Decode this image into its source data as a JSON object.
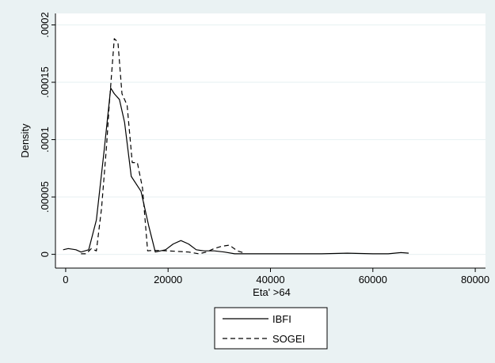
{
  "colors": {
    "background": "#eaf2f3",
    "plot_background": "#ffffff",
    "gridline": "#eaf2f3",
    "series": "#000000"
  },
  "chart_data": {
    "type": "line",
    "xlabel": "Eta' >64",
    "ylabel": "Density",
    "xlim": [
      -2000,
      82000
    ],
    "ylim": [
      -1.2e-05,
      0.00021
    ],
    "x_ticks": [
      0,
      20000,
      40000,
      60000,
      80000
    ],
    "x_tick_labels": [
      "0",
      "20000",
      "40000",
      "60000",
      "80000"
    ],
    "y_ticks": [
      0,
      5e-05,
      0.0001,
      0.00015,
      0.0002
    ],
    "y_tick_labels": [
      "0",
      ".00005",
      ".0001",
      ".00015",
      ".0002"
    ],
    "grid": "horizontal",
    "legend_position": "bottom",
    "series": [
      {
        "name": "IBFI",
        "dash": "solid",
        "x": [
          -500,
          500,
          2000,
          3000,
          4500,
          6000,
          7500,
          8800,
          9500,
          10500,
          11500,
          12800,
          14700,
          16200,
          17500,
          19500,
          21000,
          22500,
          24000,
          25500,
          27000,
          29000,
          31000,
          33000,
          36000,
          40000,
          45000,
          50000,
          55000,
          60000,
          63000,
          65500,
          67000
        ],
        "y": [
          4e-06,
          5e-06,
          4e-06,
          2e-06,
          4e-06,
          3e-05,
          9e-05,
          0.000145,
          0.00014,
          0.000135,
          0.000115,
          6.8e-05,
          5.5e-05,
          2.5e-05,
          2e-06,
          4e-06,
          9e-06,
          1.2e-05,
          9e-06,
          4e-06,
          3e-06,
          3e-06,
          2e-06,
          5e-07,
          5e-07,
          5e-07,
          5e-07,
          5e-07,
          1e-06,
          5e-07,
          5e-07,
          1.5e-06,
          1e-06
        ]
      },
      {
        "name": "SOGEI",
        "dash": "dashed",
        "x": [
          3000,
          4000,
          5000,
          6000,
          7000,
          8000,
          8500,
          9500,
          10200,
          11000,
          12000,
          13000,
          14000,
          15000,
          16000,
          17000,
          20000,
          24000,
          26000,
          27500,
          29000,
          30500,
          32000,
          33500,
          35000
        ],
        "y": [
          5e-07,
          5e-07,
          5e-06,
          3e-06,
          4e-05,
          9.5e-05,
          0.00013,
          0.000188,
          0.000185,
          0.00014,
          0.00013,
          8e-05,
          8e-05,
          5.8e-05,
          3e-06,
          3.5e-06,
          3e-06,
          2e-06,
          5e-07,
          2e-06,
          5e-06,
          7e-06,
          8e-06,
          3e-06,
          1e-06
        ]
      }
    ]
  }
}
